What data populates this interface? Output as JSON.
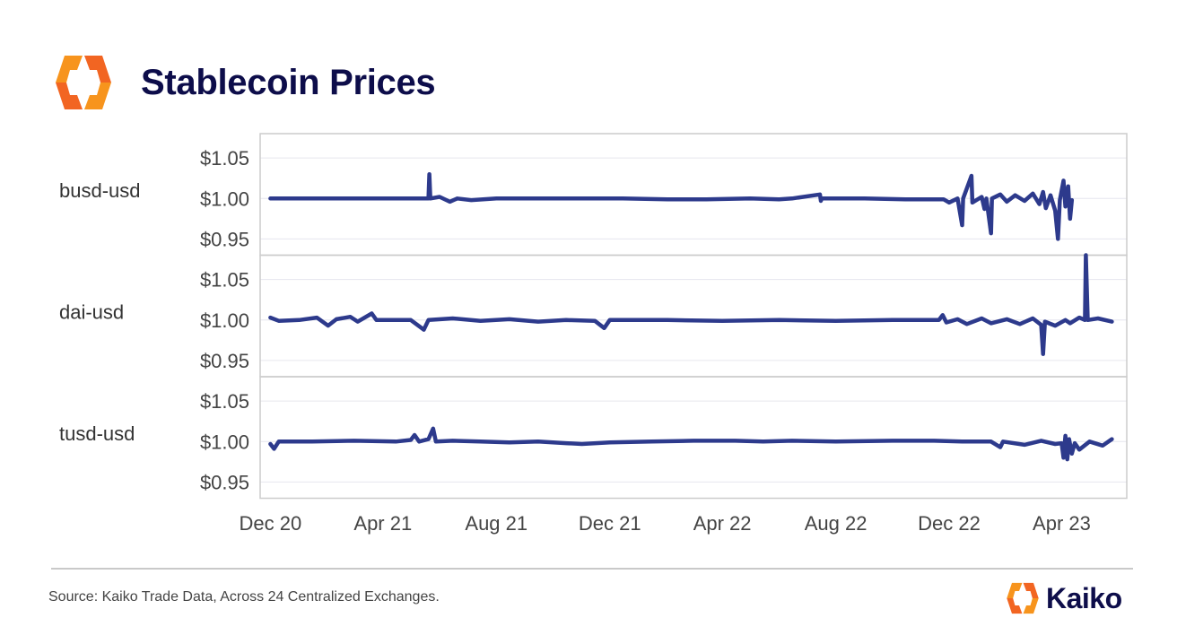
{
  "title": "Stablecoin Prices",
  "source": "Source: Kaiko Trade Data, Across 24 Centralized Exchanges.",
  "brand": "Kaiko",
  "colors": {
    "line": "#2d3a8c",
    "title": "#0d0d4a",
    "logo_orange": "#f7941d",
    "logo_orange_dark": "#f26522",
    "grid": "#e6e6ee",
    "frame": "#cccccc"
  },
  "chart_data": {
    "type": "line",
    "x_axis": {
      "range": [
        "2020-11-20",
        "2023-06-10"
      ],
      "ticks": [
        {
          "date": "2020-12-01",
          "label": "Dec 20"
        },
        {
          "date": "2021-04-01",
          "label": "Apr 21"
        },
        {
          "date": "2021-08-01",
          "label": "Aug 21"
        },
        {
          "date": "2021-12-01",
          "label": "Dec 21"
        },
        {
          "date": "2022-04-01",
          "label": "Apr 22"
        },
        {
          "date": "2022-08-01",
          "label": "Aug 22"
        },
        {
          "date": "2022-12-01",
          "label": "Dec 22"
        },
        {
          "date": "2023-04-01",
          "label": "Apr 23"
        }
      ]
    },
    "y_axis": {
      "range": [
        0.93,
        1.08
      ],
      "ticks": [
        {
          "value": 1.05,
          "label": "$1.05"
        },
        {
          "value": 1.0,
          "label": "$1.00"
        },
        {
          "value": 0.95,
          "label": "$0.95"
        }
      ],
      "grid": true
    },
    "panels": [
      {
        "label": "busd-usd",
        "points": [
          [
            "2020-12-01",
            1.0
          ],
          [
            "2021-01-15",
            1.0
          ],
          [
            "2021-03-01",
            1.0
          ],
          [
            "2021-04-15",
            1.0
          ],
          [
            "2021-05-20",
            1.0
          ],
          [
            "2021-05-21",
            1.03
          ],
          [
            "2021-05-22",
            1.0
          ],
          [
            "2021-06-01",
            1.002
          ],
          [
            "2021-06-12",
            0.996
          ],
          [
            "2021-06-20",
            1.0
          ],
          [
            "2021-07-05",
            0.998
          ],
          [
            "2021-08-01",
            1.0
          ],
          [
            "2021-09-15",
            1.0
          ],
          [
            "2021-11-01",
            1.0
          ],
          [
            "2021-12-15",
            1.0
          ],
          [
            "2022-02-01",
            0.999
          ],
          [
            "2022-03-15",
            0.999
          ],
          [
            "2022-05-01",
            1.0
          ],
          [
            "2022-06-01",
            0.999
          ],
          [
            "2022-06-15",
            1.0
          ],
          [
            "2022-07-15",
            1.005
          ],
          [
            "2022-07-16",
            0.997
          ],
          [
            "2022-07-17",
            1.0
          ],
          [
            "2022-09-01",
            1.0
          ],
          [
            "2022-10-15",
            0.999
          ],
          [
            "2022-11-25",
            0.999
          ],
          [
            "2022-12-01",
            0.995
          ],
          [
            "2022-12-10",
            1.0
          ],
          [
            "2022-12-15",
            0.967
          ],
          [
            "2022-12-16",
            1.0
          ],
          [
            "2022-12-25",
            1.028
          ],
          [
            "2022-12-26",
            0.995
          ],
          [
            "2023-01-05",
            1.002
          ],
          [
            "2023-01-08",
            0.987
          ],
          [
            "2023-01-10",
            1.0
          ],
          [
            "2023-01-15",
            0.957
          ],
          [
            "2023-01-16",
            1.0
          ],
          [
            "2023-01-25",
            1.005
          ],
          [
            "2023-02-01",
            0.996
          ],
          [
            "2023-02-10",
            1.004
          ],
          [
            "2023-02-20",
            0.997
          ],
          [
            "2023-03-01",
            1.006
          ],
          [
            "2023-03-08",
            0.993
          ],
          [
            "2023-03-12",
            1.008
          ],
          [
            "2023-03-15",
            0.988
          ],
          [
            "2023-03-20",
            1.004
          ],
          [
            "2023-03-25",
            0.985
          ],
          [
            "2023-03-28",
            0.95
          ],
          [
            "2023-03-30",
            0.998
          ],
          [
            "2023-04-03",
            1.022
          ],
          [
            "2023-04-05",
            0.99
          ],
          [
            "2023-04-08",
            1.015
          ],
          [
            "2023-04-10",
            0.975
          ],
          [
            "2023-04-12",
            0.998
          ]
        ]
      },
      {
        "label": "dai-usd",
        "points": [
          [
            "2020-12-01",
            1.003
          ],
          [
            "2020-12-10",
            0.999
          ],
          [
            "2021-01-01",
            1.0
          ],
          [
            "2021-01-20",
            1.003
          ],
          [
            "2021-02-01",
            0.993
          ],
          [
            "2021-02-10",
            1.001
          ],
          [
            "2021-02-25",
            1.004
          ],
          [
            "2021-03-05",
            0.998
          ],
          [
            "2021-03-20",
            1.008
          ],
          [
            "2021-03-25",
            1.0
          ],
          [
            "2021-05-01",
            1.0
          ],
          [
            "2021-05-15",
            0.988
          ],
          [
            "2021-05-20",
            1.0
          ],
          [
            "2021-06-15",
            1.002
          ],
          [
            "2021-07-15",
            0.999
          ],
          [
            "2021-08-15",
            1.001
          ],
          [
            "2021-09-15",
            0.998
          ],
          [
            "2021-10-15",
            1.0
          ],
          [
            "2021-11-15",
            0.999
          ],
          [
            "2021-11-25",
            0.99
          ],
          [
            "2021-12-01",
            1.0
          ],
          [
            "2022-02-01",
            1.0
          ],
          [
            "2022-04-01",
            0.999
          ],
          [
            "2022-06-01",
            1.0
          ],
          [
            "2022-08-01",
            0.999
          ],
          [
            "2022-10-01",
            1.0
          ],
          [
            "2022-11-20",
            1.0
          ],
          [
            "2022-11-24",
            1.006
          ],
          [
            "2022-11-28",
            0.997
          ],
          [
            "2022-12-10",
            1.001
          ],
          [
            "2022-12-20",
            0.995
          ],
          [
            "2023-01-05",
            1.002
          ],
          [
            "2023-01-15",
            0.996
          ],
          [
            "2023-02-01",
            1.001
          ],
          [
            "2023-02-15",
            0.995
          ],
          [
            "2023-03-01",
            1.002
          ],
          [
            "2023-03-10",
            0.994
          ],
          [
            "2023-03-12",
            0.958
          ],
          [
            "2023-03-14",
            0.998
          ],
          [
            "2023-03-25",
            0.993
          ],
          [
            "2023-04-05",
            1.0
          ],
          [
            "2023-04-10",
            0.996
          ],
          [
            "2023-04-20",
            1.003
          ],
          [
            "2023-04-26",
            1.0
          ],
          [
            "2023-04-27",
            1.08
          ],
          [
            "2023-04-29",
            1.0
          ],
          [
            "2023-05-10",
            1.002
          ],
          [
            "2023-05-25",
            0.998
          ]
        ]
      },
      {
        "label": "tusd-usd",
        "points": [
          [
            "2020-12-01",
            0.997
          ],
          [
            "2020-12-05",
            0.991
          ],
          [
            "2020-12-10",
            1.0
          ],
          [
            "2021-01-15",
            1.0
          ],
          [
            "2021-03-01",
            1.001
          ],
          [
            "2021-04-15",
            1.0
          ],
          [
            "2021-05-01",
            1.002
          ],
          [
            "2021-05-05",
            1.008
          ],
          [
            "2021-05-10",
            1.0
          ],
          [
            "2021-05-20",
            1.003
          ],
          [
            "2021-05-25",
            1.016
          ],
          [
            "2021-05-28",
            1.0
          ],
          [
            "2021-06-15",
            1.001
          ],
          [
            "2021-07-15",
            1.0
          ],
          [
            "2021-08-15",
            0.999
          ],
          [
            "2021-09-15",
            1.0
          ],
          [
            "2021-10-15",
            0.998
          ],
          [
            "2021-11-01",
            0.997
          ],
          [
            "2021-12-01",
            0.999
          ],
          [
            "2022-01-15",
            1.0
          ],
          [
            "2022-03-01",
            1.001
          ],
          [
            "2022-04-15",
            1.001
          ],
          [
            "2022-05-15",
            1.0
          ],
          [
            "2022-06-15",
            1.001
          ],
          [
            "2022-08-01",
            1.0
          ],
          [
            "2022-10-01",
            1.001
          ],
          [
            "2022-11-15",
            1.001
          ],
          [
            "2022-12-15",
            1.0
          ],
          [
            "2023-01-15",
            1.0
          ],
          [
            "2023-01-25",
            0.993
          ],
          [
            "2023-01-28",
            1.0
          ],
          [
            "2023-02-20",
            0.996
          ],
          [
            "2023-03-10",
            1.001
          ],
          [
            "2023-03-25",
            0.997
          ],
          [
            "2023-04-01",
            0.998
          ],
          [
            "2023-04-03",
            0.98
          ],
          [
            "2023-04-05",
            1.007
          ],
          [
            "2023-04-07",
            0.978
          ],
          [
            "2023-04-09",
            1.003
          ],
          [
            "2023-04-12",
            0.985
          ],
          [
            "2023-04-15",
            0.998
          ],
          [
            "2023-04-20",
            0.99
          ],
          [
            "2023-05-01",
            1.0
          ],
          [
            "2023-05-15",
            0.995
          ],
          [
            "2023-05-25",
            1.003
          ]
        ]
      }
    ]
  }
}
